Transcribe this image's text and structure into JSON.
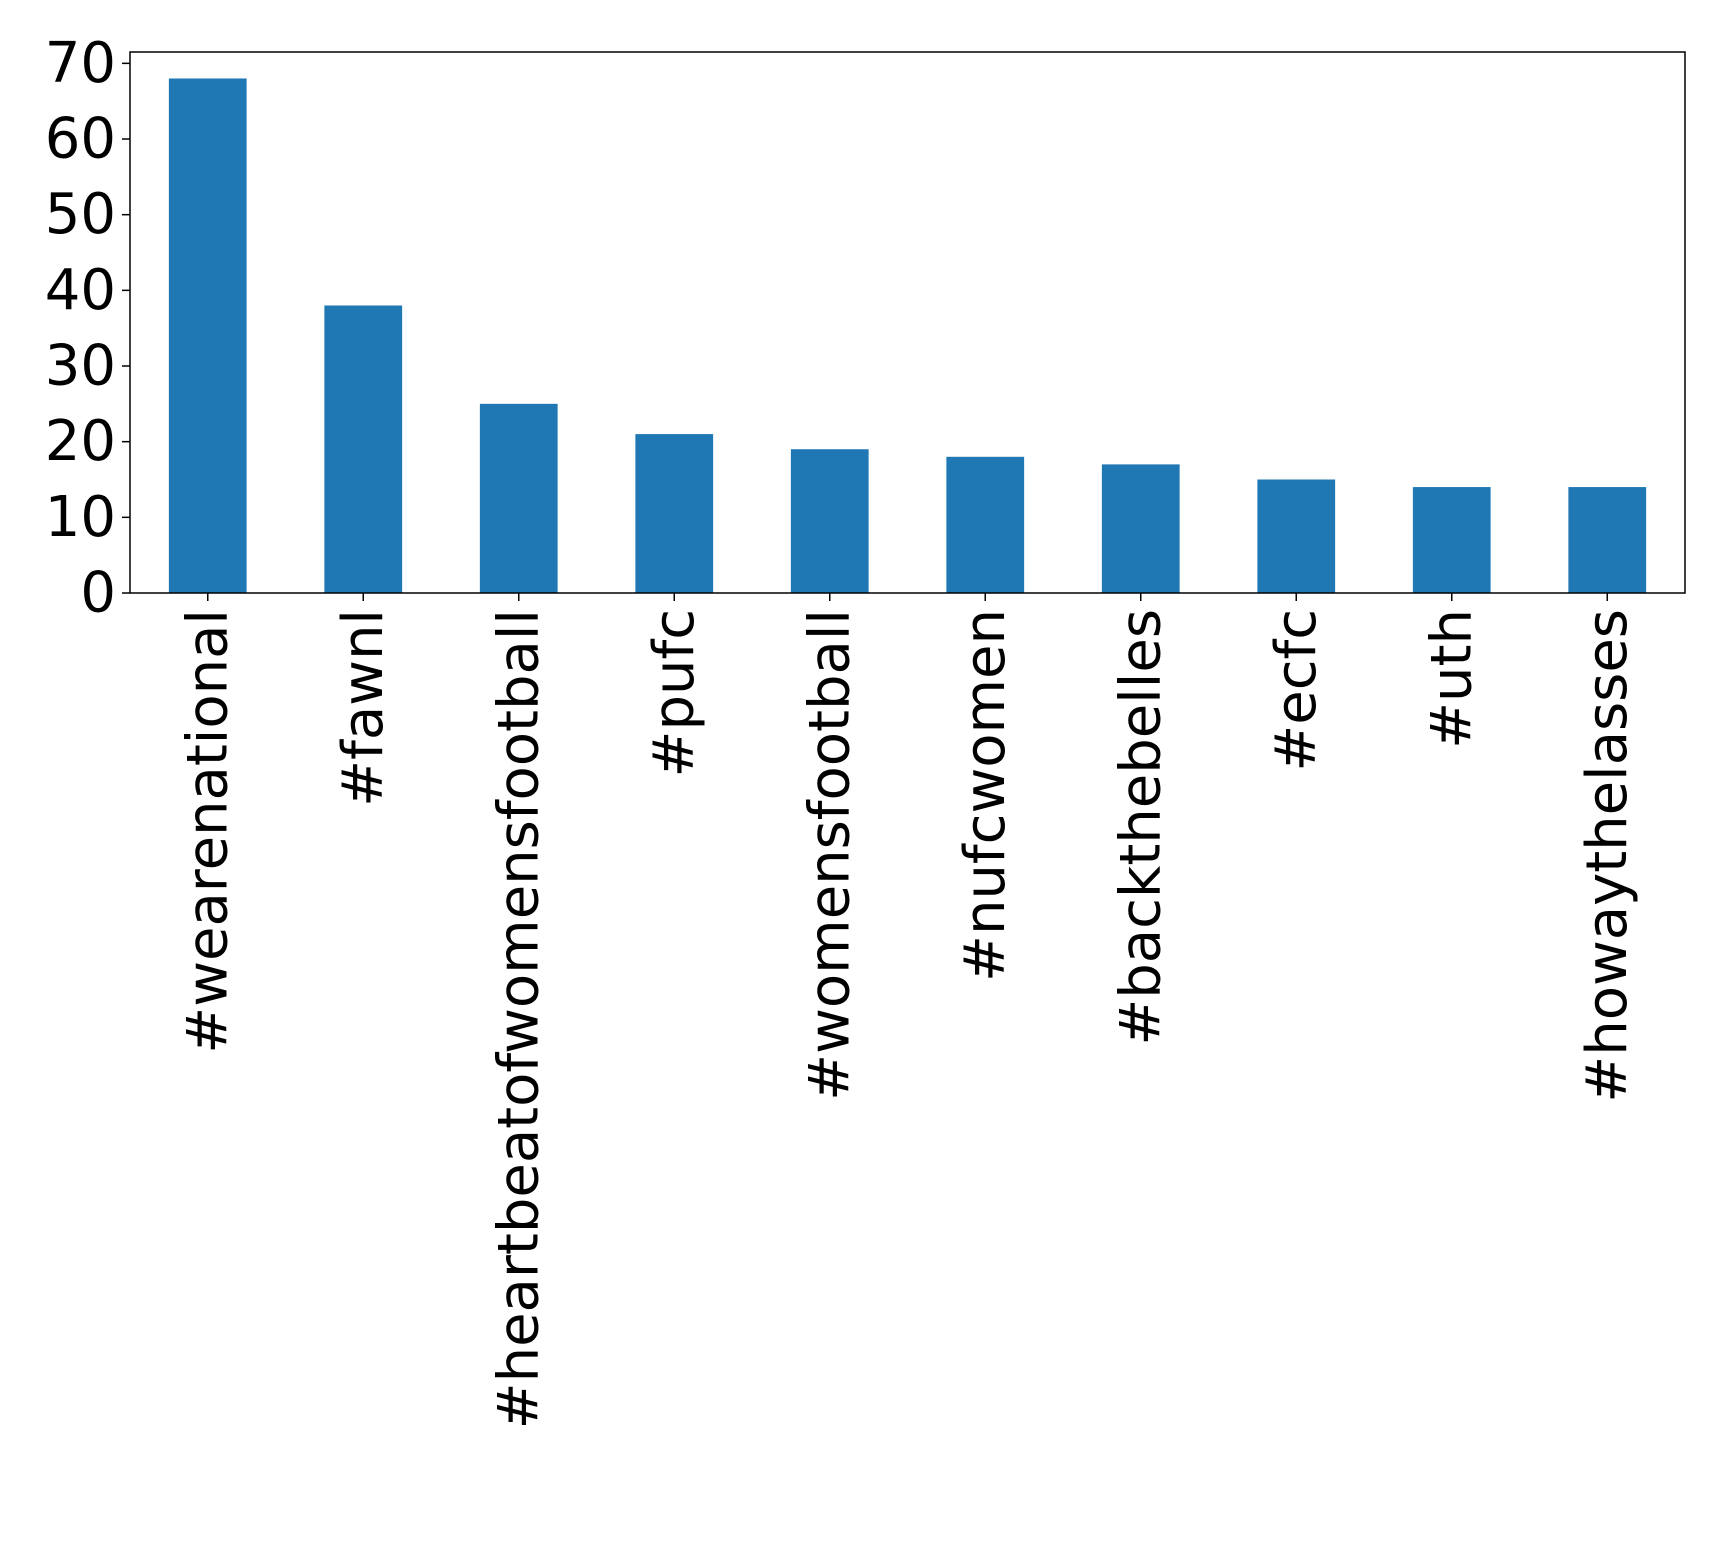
{
  "chart_data": {
    "type": "bar",
    "title": "",
    "xlabel": "",
    "ylabel": "",
    "categories": [
      "#wearenational",
      "#fawnl",
      "#heartbeatofwomensfootball",
      "#pufc",
      "#womensfootball",
      "#nufcwomen",
      "#backthebelles",
      "#ecfc",
      "#uth",
      "#howaythelasses"
    ],
    "values": [
      68,
      38,
      25,
      21,
      19,
      18,
      17,
      15,
      14,
      14
    ],
    "ylim": [
      0,
      71.5
    ],
    "yticks": [
      0,
      10,
      20,
      30,
      40,
      50,
      60,
      70
    ],
    "grid": false,
    "legend": "none",
    "bar_color": "#1f77b4"
  }
}
